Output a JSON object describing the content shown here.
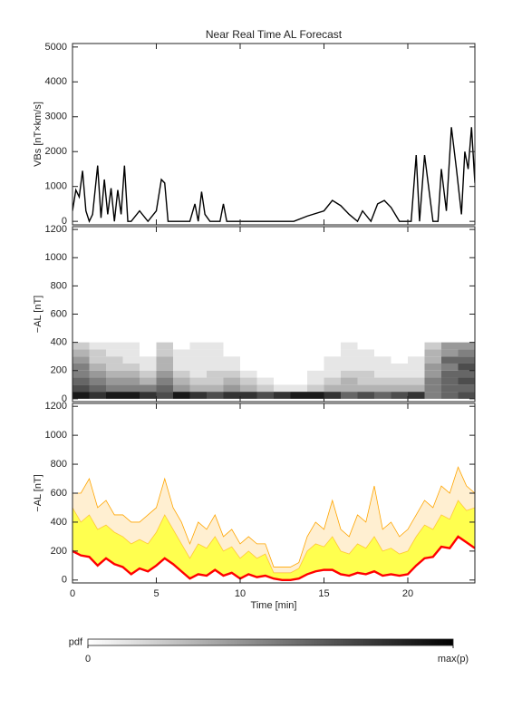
{
  "chart_data": [
    {
      "type": "line",
      "title": "Near Real Time AL Forecast",
      "ylabel": "VBs [nT×km/s]",
      "color": "#000000",
      "x": [
        0,
        0.2,
        0.4,
        0.6,
        0.8,
        1.0,
        1.2,
        1.5,
        1.7,
        1.9,
        2.1,
        2.3,
        2.5,
        2.7,
        2.9,
        3.1,
        3.3,
        3.5,
        4.0,
        4.5,
        5.0,
        5.3,
        5.5,
        5.7,
        6.0,
        6.5,
        7.0,
        7.3,
        7.5,
        7.7,
        7.9,
        8.2,
        8.8,
        9.0,
        9.2,
        10,
        12,
        13.2,
        14,
        15,
        15.5,
        16,
        16.5,
        17,
        17.3,
        17.8,
        18.2,
        18.6,
        19,
        19.5,
        19.8,
        20.2,
        20.5,
        20.7,
        21,
        21.5,
        21.8,
        22,
        22.3,
        22.6,
        22.9,
        23.2,
        23.4,
        23.6,
        23.8,
        24
      ],
      "values": [
        300,
        900,
        700,
        1450,
        300,
        0,
        200,
        1600,
        100,
        1200,
        200,
        950,
        0,
        900,
        200,
        1600,
        0,
        0,
        300,
        0,
        300,
        1200,
        1100,
        0,
        0,
        0,
        0,
        500,
        0,
        850,
        200,
        0,
        0,
        500,
        0,
        0,
        0,
        0,
        150,
        300,
        600,
        450,
        200,
        0,
        300,
        0,
        500,
        600,
        400,
        0,
        0,
        0,
        1900,
        0,
        1900,
        0,
        0,
        1500,
        300,
        2700,
        1500,
        200,
        2000,
        1500,
        2700,
        1100
      ],
      "xlim": [
        0,
        24
      ],
      "ylim": [
        -100,
        5100
      ],
      "xticks": [
        0,
        5,
        10,
        15,
        20
      ],
      "yticks": [
        0,
        1000,
        2000,
        3000,
        4000,
        5000
      ]
    },
    {
      "type": "heatmap",
      "ylabel": "−AL [nT]",
      "x_edges": [
        0,
        1,
        2,
        3,
        4,
        5,
        6,
        7,
        8,
        9,
        10,
        11,
        12,
        13,
        14,
        15,
        16,
        17,
        18,
        19,
        20,
        21,
        22,
        23,
        24
      ],
      "y_edges": [
        0,
        50,
        100,
        150,
        200,
        250,
        300,
        350,
        400
      ],
      "z": [
        [
          0.9,
          0.8,
          0.9,
          0.9,
          0.8,
          0.7,
          0.9,
          0.8,
          0.7,
          0.8,
          0.8,
          0.7,
          0.8,
          0.9,
          0.9,
          0.8,
          0.6,
          0.7,
          0.6,
          0.7,
          0.8,
          0.5,
          0.6,
          0.7
        ],
        [
          0.7,
          0.6,
          0.5,
          0.5,
          0.5,
          0.6,
          0.4,
          0.3,
          0.3,
          0.4,
          0.3,
          0.2,
          0.1,
          0.1,
          0.2,
          0.3,
          0.3,
          0.3,
          0.3,
          0.3,
          0.3,
          0.5,
          0.6,
          0.6
        ],
        [
          0.6,
          0.5,
          0.4,
          0.4,
          0.3,
          0.5,
          0.3,
          0.2,
          0.2,
          0.3,
          0.2,
          0.1,
          0,
          0,
          0.1,
          0.2,
          0.3,
          0.2,
          0.2,
          0.2,
          0.2,
          0.5,
          0.6,
          0.7
        ],
        [
          0.5,
          0.4,
          0.3,
          0.3,
          0.2,
          0.4,
          0.2,
          0.1,
          0.2,
          0.2,
          0.1,
          0,
          0,
          0,
          0.1,
          0.1,
          0.2,
          0.2,
          0.1,
          0.1,
          0.1,
          0.4,
          0.6,
          0.6
        ],
        [
          0.5,
          0.3,
          0.2,
          0.2,
          0.1,
          0.3,
          0.1,
          0.1,
          0.1,
          0.1,
          0,
          0,
          0,
          0,
          0,
          0.1,
          0.1,
          0.1,
          0.1,
          0.1,
          0.1,
          0.4,
          0.5,
          0.7
        ],
        [
          0.4,
          0.2,
          0.2,
          0.1,
          0.1,
          0.3,
          0.1,
          0.1,
          0.1,
          0.1,
          0,
          0,
          0,
          0,
          0,
          0.1,
          0.1,
          0.1,
          0.1,
          0,
          0.1,
          0.3,
          0.6,
          0.6
        ],
        [
          0.3,
          0.2,
          0.1,
          0.1,
          0,
          0.2,
          0.1,
          0.1,
          0.1,
          0,
          0,
          0,
          0,
          0,
          0,
          0,
          0.1,
          0.1,
          0,
          0,
          0,
          0.3,
          0.4,
          0.5
        ],
        [
          0.2,
          0.1,
          0.1,
          0.1,
          0,
          0.2,
          0,
          0.1,
          0.1,
          0,
          0,
          0,
          0,
          0,
          0,
          0,
          0.1,
          0,
          0,
          0,
          0,
          0.2,
          0.4,
          0.4
        ]
      ],
      "xlim": [
        0,
        24
      ],
      "ylim": [
        -20,
        1220
      ],
      "xticks": [
        0,
        5,
        10,
        15,
        20
      ],
      "yticks": [
        0,
        200,
        400,
        600,
        800,
        1000,
        1200
      ]
    },
    {
      "type": "band",
      "ylabel": "−AL [nT]",
      "xlabel": "Time [min]",
      "x": [
        0,
        0.5,
        1,
        1.5,
        2,
        2.5,
        3,
        3.5,
        4,
        4.5,
        5,
        5.5,
        6,
        6.5,
        7,
        7.5,
        8,
        8.5,
        9,
        9.5,
        10,
        10.5,
        11,
        11.5,
        12,
        12.5,
        13,
        13.5,
        14,
        14.5,
        15,
        15.5,
        16,
        16.5,
        17,
        17.5,
        18,
        18.5,
        19,
        19.5,
        20,
        20.5,
        21,
        21.5,
        22,
        22.5,
        23,
        23.5,
        24
      ],
      "series": [
        {
          "color": "#ff0000",
          "values": [
            200,
            170,
            160,
            100,
            150,
            110,
            90,
            40,
            80,
            60,
            100,
            150,
            110,
            60,
            10,
            40,
            30,
            70,
            30,
            50,
            10,
            40,
            20,
            30,
            10,
            0,
            0,
            10,
            40,
            60,
            70,
            70,
            40,
            30,
            50,
            40,
            60,
            30,
            40,
            30,
            40,
            100,
            150,
            160,
            230,
            220,
            300,
            260,
            220
          ]
        },
        {
          "color": "#ffff30",
          "values": [
            500,
            400,
            450,
            350,
            380,
            330,
            300,
            250,
            280,
            250,
            330,
            450,
            350,
            250,
            150,
            250,
            220,
            300,
            200,
            230,
            150,
            200,
            150,
            180,
            50,
            50,
            50,
            80,
            200,
            250,
            230,
            300,
            200,
            180,
            250,
            220,
            300,
            200,
            220,
            180,
            200,
            300,
            380,
            350,
            450,
            420,
            550,
            480,
            500
          ]
        },
        {
          "color": "#ffa500",
          "values": [
            600,
            600,
            700,
            500,
            550,
            450,
            450,
            400,
            400,
            450,
            500,
            700,
            500,
            400,
            250,
            400,
            350,
            450,
            300,
            350,
            250,
            300,
            250,
            250,
            90,
            90,
            90,
            120,
            300,
            400,
            350,
            550,
            350,
            300,
            450,
            400,
            650,
            350,
            400,
            300,
            350,
            450,
            550,
            500,
            650,
            600,
            780,
            650,
            600
          ]
        }
      ],
      "xlim": [
        0,
        24
      ],
      "ylim": [
        -20,
        1220
      ],
      "xticks": [
        0,
        5,
        10,
        15,
        20
      ],
      "yticks": [
        0,
        200,
        400,
        600,
        800,
        1000,
        1200
      ]
    }
  ],
  "colorbar": {
    "label": "pdf",
    "lim": [
      0,
      1
    ],
    "ticks": [
      0,
      {
        "value": 1,
        "label": "max(p)"
      }
    ]
  }
}
